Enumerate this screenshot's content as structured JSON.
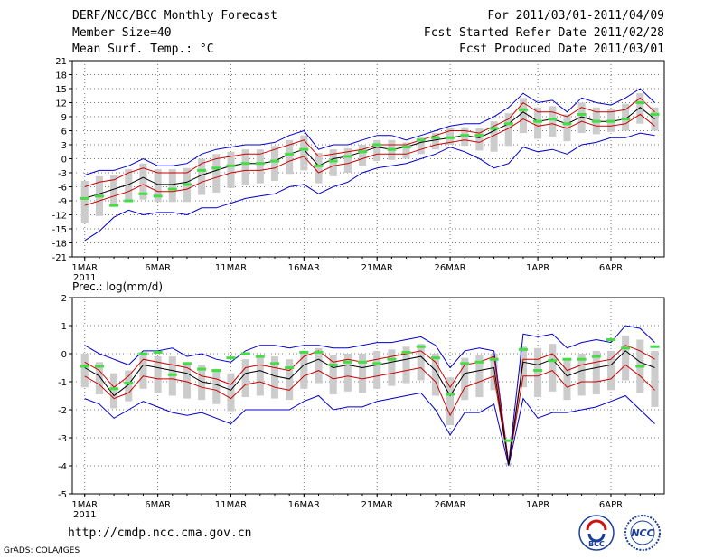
{
  "header": {
    "title": "DERF/NCC/BCC Monthly Forecast",
    "member_size": "Member Size=40",
    "variable": "Mean Surf. Temp.: °C",
    "period": "For 2011/03/01-2011/04/09",
    "started": "Fcst Started Refer Date 2011/02/28",
    "produced": "Fcst Produced Date 2011/03/01"
  },
  "footer": {
    "url": "http://cmdp.ncc.cma.gov.cn",
    "credit": "GrADS: COLA/IGES",
    "logo1": "BCC",
    "logo2": "NCC"
  },
  "colors": {
    "envelope": "#0000cc",
    "spread": "#cc0000",
    "mean": "#000000",
    "box": "#cccccc",
    "median": "#44dd44"
  },
  "chart_data": [
    {
      "type": "line",
      "title": "Mean Surf. Temp.: °C",
      "x_labels": [
        "1MAR",
        "6MAR",
        "11MAR",
        "16MAR",
        "21MAR",
        "26MAR",
        "1APR",
        "6APR"
      ],
      "x_label_days": [
        1,
        6,
        11,
        16,
        21,
        26,
        32,
        37
      ],
      "year_label": "2011",
      "ylim": [
        -21,
        21
      ],
      "yticks": [
        -21,
        -18,
        -15,
        -12,
        -9,
        -6,
        -3,
        0,
        3,
        6,
        9,
        12,
        15,
        18,
        21
      ],
      "days": 40,
      "series": [
        {
          "name": "max",
          "values": [
            -3.5,
            -2.5,
            -2.5,
            -1.5,
            0,
            -1.5,
            -1.5,
            -1,
            1,
            2,
            2.5,
            3,
            3,
            3.5,
            5,
            6,
            2,
            3,
            3,
            4,
            5,
            5,
            4,
            5,
            6,
            7,
            7.5,
            7.5,
            9,
            11,
            14,
            12,
            12.5,
            10,
            13,
            12,
            11.5,
            13,
            15,
            12
          ]
        },
        {
          "name": "upper",
          "values": [
            -6,
            -5,
            -4.5,
            -3,
            -2,
            -3,
            -3,
            -3,
            -1,
            0,
            0.5,
            1,
            1,
            2,
            3,
            4,
            0.5,
            1,
            1.5,
            2,
            3,
            3,
            3,
            4,
            5,
            6,
            6,
            5.5,
            7,
            8.5,
            12,
            10,
            10,
            9,
            11,
            10,
            10,
            10.5,
            13,
            10
          ]
        },
        {
          "name": "mean",
          "values": [
            -8.5,
            -7.5,
            -6.5,
            -5.5,
            -4,
            -5.5,
            -5.5,
            -5,
            -3.5,
            -2.5,
            -1.5,
            -1,
            -1,
            -0.5,
            1,
            2,
            -1.5,
            0,
            0.5,
            1.5,
            2.5,
            2,
            2.5,
            3.5,
            4,
            4.5,
            5,
            4.5,
            6,
            7.5,
            10,
            8,
            8.5,
            7.5,
            9,
            8,
            8,
            8.5,
            11,
            8.5
          ]
        },
        {
          "name": "lower",
          "values": [
            -10,
            -9,
            -8,
            -7,
            -5.5,
            -7,
            -7,
            -6.5,
            -5,
            -4,
            -3,
            -2.5,
            -2.5,
            -2,
            -0.5,
            0.5,
            -3,
            -1.5,
            -1,
            0,
            1,
            1,
            1,
            2,
            3,
            3.5,
            4,
            3.5,
            5,
            6.5,
            8.5,
            7,
            7.5,
            6.5,
            8,
            7,
            7,
            7.5,
            9.5,
            7
          ]
        },
        {
          "name": "min",
          "values": [
            -17.5,
            -15.5,
            -12.5,
            -11,
            -12,
            -11.5,
            -11.5,
            -12,
            -10.5,
            -10.5,
            -9.5,
            -8.5,
            -8,
            -7.5,
            -6,
            -5.5,
            -7.5,
            -6,
            -5,
            -3,
            -2,
            -1.5,
            -1,
            0,
            1,
            2.5,
            1.5,
            0,
            -2,
            -1,
            2.5,
            1.5,
            2,
            1,
            3,
            3.5,
            4.5,
            4.5,
            5.5,
            5
          ]
        },
        {
          "name": "median",
          "values": [
            -8.5,
            -8,
            -10,
            -9,
            -7.5,
            -8,
            -6.5,
            -5.5,
            -2.5,
            -2,
            -1.5,
            -1,
            -1,
            -0.5,
            1,
            2,
            -1.5,
            -0.5,
            0.5,
            1.5,
            3,
            2,
            2.5,
            4,
            4.5,
            4.5,
            5,
            5,
            6.5,
            7.5,
            10.5,
            8,
            8.5,
            7.5,
            9.5,
            8,
            8,
            8.5,
            12,
            9.5
          ]
        }
      ]
    },
    {
      "type": "line",
      "title": "Prec.: log(mm/d)",
      "x_labels": [
        "1MAR",
        "6MAR",
        "11MAR",
        "16MAR",
        "21MAR",
        "26MAR",
        "1APR",
        "6APR"
      ],
      "x_label_days": [
        1,
        6,
        11,
        16,
        21,
        26,
        32,
        37
      ],
      "year_label": "2011",
      "ylim": [
        -5,
        2
      ],
      "yticks": [
        -5,
        -4,
        -3,
        -2,
        -1,
        0,
        1,
        2
      ],
      "days": 40,
      "series": [
        {
          "name": "max",
          "values": [
            0.3,
            0,
            -0.2,
            -0.4,
            0.1,
            0.1,
            0.2,
            -0.1,
            0,
            -0.2,
            -0.3,
            0.1,
            0.3,
            0.3,
            0.2,
            0.3,
            0.3,
            0.2,
            0.2,
            0.3,
            0.4,
            0.4,
            0.5,
            0.6,
            0.3,
            -0.5,
            0.1,
            0.2,
            0.1,
            -3.9,
            0.7,
            0.6,
            0.7,
            0.2,
            0.4,
            0.5,
            0.4,
            1,
            0.9,
            0.4
          ]
        },
        {
          "name": "upper",
          "values": [
            -0.3,
            -0.6,
            -1.2,
            -0.8,
            -0.2,
            -0.3,
            -0.4,
            -0.5,
            -0.8,
            -0.9,
            -1.1,
            -0.5,
            -0.4,
            -0.5,
            -0.6,
            -0.1,
            0.1,
            -0.3,
            -0.2,
            -0.3,
            -0.2,
            -0.1,
            0,
            0.1,
            -0.3,
            -1.2,
            -0.4,
            -0.3,
            -0.1,
            -3.9,
            -0.2,
            -0.2,
            0,
            -0.6,
            -0.4,
            -0.3,
            -0.2,
            0.3,
            0.1,
            -0.2
          ]
        },
        {
          "name": "mean",
          "values": [
            -0.5,
            -0.8,
            -1.5,
            -1.1,
            -0.4,
            -0.5,
            -0.6,
            -0.7,
            -1,
            -1.1,
            -1.3,
            -0.7,
            -0.6,
            -0.8,
            -0.9,
            -0.4,
            -0.2,
            -0.5,
            -0.4,
            -0.5,
            -0.4,
            -0.3,
            -0.2,
            -0.1,
            -0.6,
            -1.5,
            -0.7,
            -0.6,
            -0.5,
            -3.95,
            -0.3,
            -0.4,
            -0.2,
            -0.8,
            -0.6,
            -0.5,
            -0.4,
            0.1,
            -0.3,
            -0.5
          ]
        },
        {
          "name": "lower",
          "values": [
            -0.8,
            -1.1,
            -1.6,
            -1.4,
            -0.8,
            -0.9,
            -0.9,
            -1,
            -1.2,
            -1.3,
            -1.6,
            -1.1,
            -1,
            -1.2,
            -1.3,
            -0.8,
            -0.6,
            -0.9,
            -0.8,
            -0.9,
            -0.8,
            -0.7,
            -0.6,
            -0.5,
            -1,
            -2.2,
            -1.2,
            -1,
            -0.8,
            -3.95,
            -0.8,
            -0.8,
            -0.6,
            -1.2,
            -1,
            -1,
            -0.9,
            -0.4,
            -0.8,
            -1.3
          ]
        },
        {
          "name": "min",
          "values": [
            -1.6,
            -1.8,
            -2.3,
            -2,
            -1.7,
            -1.9,
            -2.1,
            -2.2,
            -2.1,
            -2.3,
            -2.5,
            -2,
            -2,
            -2,
            -2,
            -1.7,
            -1.5,
            -2,
            -1.9,
            -1.9,
            -1.7,
            -1.6,
            -1.5,
            -1.4,
            -2,
            -2.9,
            -2.1,
            -2.1,
            -1.8,
            -4,
            -1.6,
            -2.3,
            -2.1,
            -2.1,
            -2,
            -1.9,
            -1.7,
            -1.5,
            -2,
            -2.5
          ]
        },
        {
          "name": "median",
          "values": [
            -0.45,
            -0.45,
            -1.25,
            -1.05,
            0,
            0.05,
            -0.75,
            -0.35,
            -0.55,
            -0.6,
            -0.15,
            0,
            -0.1,
            -0.35,
            -0.5,
            0.05,
            0.05,
            -0.4,
            -0.3,
            -0.3,
            -0.35,
            -0.2,
            0.05,
            0.25,
            -0.15,
            -1.45,
            -0.35,
            -0.3,
            -0.2,
            -3.1,
            0.15,
            -0.6,
            -0.25,
            -0.2,
            -0.2,
            -0.1,
            0.5,
            0.2,
            -0.45,
            0.25
          ]
        }
      ]
    }
  ]
}
